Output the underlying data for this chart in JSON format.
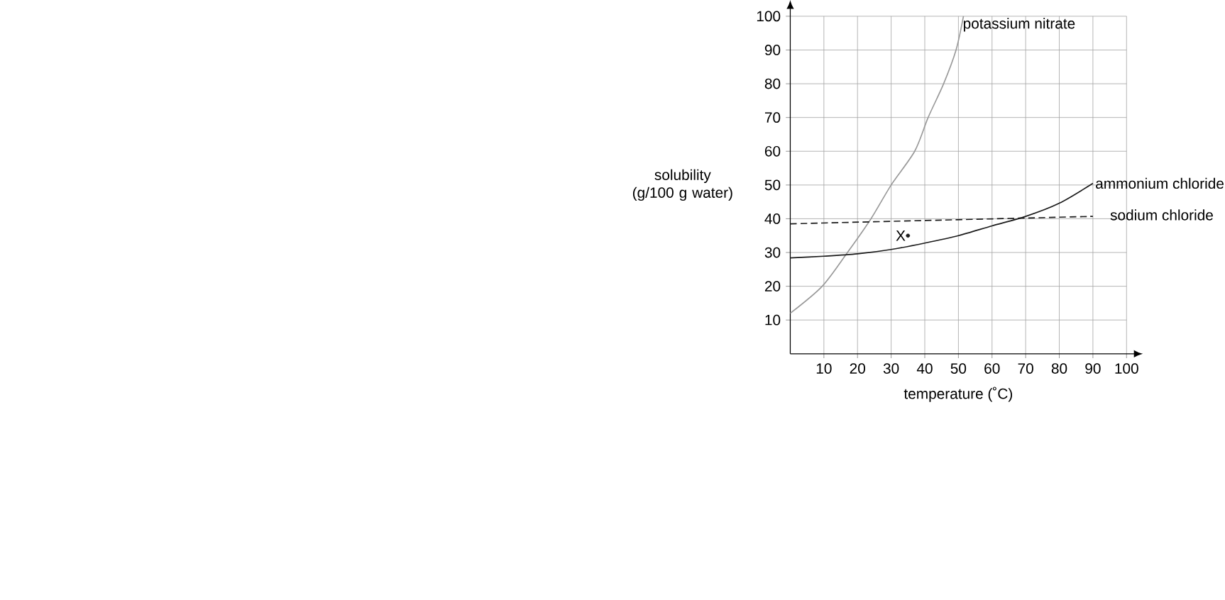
{
  "chart_data": {
    "type": "line",
    "xlabel": "temperature (˚C)",
    "ylabel": "solubility (g/100 g water)",
    "xlim": [
      0,
      100
    ],
    "ylim": [
      0,
      100
    ],
    "xticks": [
      10,
      20,
      30,
      40,
      50,
      60,
      70,
      80,
      90,
      100
    ],
    "yticks": [
      10,
      20,
      30,
      40,
      50,
      60,
      70,
      80,
      90,
      100
    ],
    "grid": true,
    "marker": "none",
    "line_style": "solid",
    "series": [
      {
        "name": "potassium nitrate",
        "color": "#999999",
        "x": [
          0,
          9.5,
          17,
          24,
          30,
          37,
          41,
          45.6,
          49.3,
          51.5
        ],
        "values": [
          12,
          20,
          30,
          40,
          50,
          60,
          70,
          80,
          90,
          100
        ]
      },
      {
        "name": "ammonium chloride",
        "color": "#1a1a1a",
        "x": [
          0,
          10,
          20,
          30,
          40,
          50,
          60,
          70,
          80,
          90
        ],
        "values": [
          28.4,
          28.9,
          29.6,
          30.9,
          32.8,
          35,
          37.9,
          40.7,
          44.6,
          50.5
        ]
      },
      {
        "name": "sodium chloride",
        "color": "#1a1a1a",
        "line_style": "dashed",
        "x": [
          0,
          45,
          90
        ],
        "values": [
          38.5,
          39.6,
          40.7
        ]
      },
      {
        "name": "X",
        "type": "scatter",
        "marker": "circle",
        "color": "#1a1a1a",
        "x": [
          35
        ],
        "values": [
          35
        ]
      }
    ]
  }
}
